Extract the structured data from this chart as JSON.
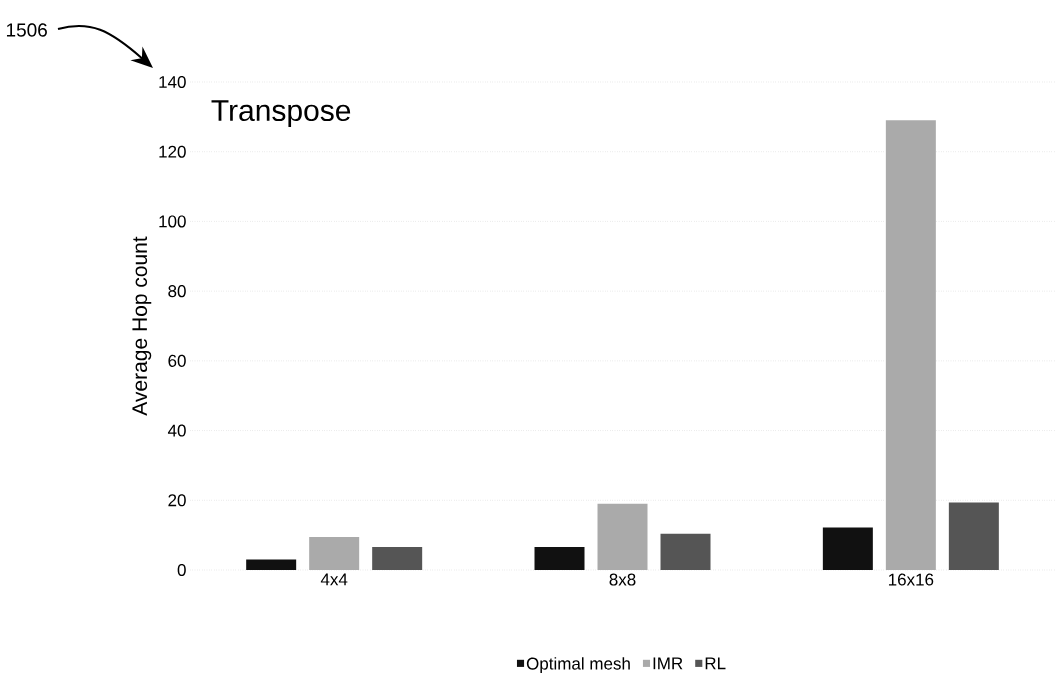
{
  "chart_data": {
    "type": "bar",
    "title": "Transpose",
    "ylabel": "Average Hop count",
    "categories": [
      "4x4",
      "8x8",
      "16x16"
    ],
    "series": [
      {
        "name": "Optimal mesh",
        "color": "#111111",
        "values": [
          3,
          6.6,
          12.2
        ]
      },
      {
        "name": "IMR",
        "color": "#aaaaaa",
        "values": [
          9.5,
          19,
          129
        ]
      },
      {
        "name": "RL",
        "color": "#555555",
        "values": [
          6.6,
          10.4,
          19.4
        ]
      }
    ],
    "ylim": [
      0,
      140
    ],
    "yticks": [
      0,
      20,
      40,
      60,
      80,
      100,
      120,
      140
    ],
    "grid": "y",
    "legend": "bottom",
    "annotations": [
      "1506"
    ]
  }
}
